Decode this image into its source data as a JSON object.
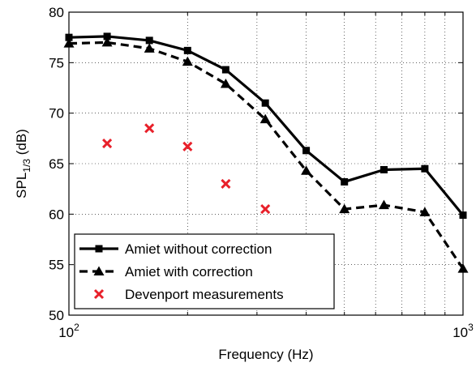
{
  "chart_data": {
    "type": "line",
    "xscale": "log",
    "xlim": [
      100,
      1000
    ],
    "ylim": [
      50,
      80
    ],
    "xlabel": "Frequency (Hz)",
    "ylabel": {
      "main": "SPL",
      "subscript": "1/3",
      "unit": " (dB)"
    },
    "xticks": [
      {
        "value": 100,
        "base": "10",
        "exp": "2"
      },
      {
        "value": 1000,
        "base": "10",
        "exp": "3"
      }
    ],
    "yticks": [
      50,
      55,
      60,
      65,
      70,
      75,
      80
    ],
    "grid": true,
    "legend_position": "bottom-left",
    "series": [
      {
        "name": "Amiet without correction",
        "style": "solid",
        "marker": "square",
        "color": "#000000",
        "x": [
          100,
          125,
          160,
          200,
          250,
          315,
          400,
          500,
          630,
          800,
          1000
        ],
        "y": [
          77.5,
          77.6,
          77.2,
          76.2,
          74.3,
          71.0,
          66.3,
          63.2,
          64.4,
          64.5,
          59.9
        ]
      },
      {
        "name": "Amiet with correction",
        "style": "dashed",
        "marker": "triangle",
        "color": "#000000",
        "x": [
          100,
          125,
          160,
          200,
          250,
          315,
          400,
          500,
          630,
          800,
          1000
        ],
        "y": [
          76.9,
          77.0,
          76.4,
          75.1,
          72.9,
          69.4,
          64.3,
          60.5,
          60.9,
          60.2,
          54.6
        ]
      },
      {
        "name": "Devenport measurements",
        "style": "none",
        "marker": "x",
        "color": "#e8202a",
        "x": [
          125,
          160,
          200,
          250,
          315
        ],
        "y": [
          67.0,
          68.5,
          66.7,
          63.0,
          60.5
        ]
      }
    ]
  }
}
